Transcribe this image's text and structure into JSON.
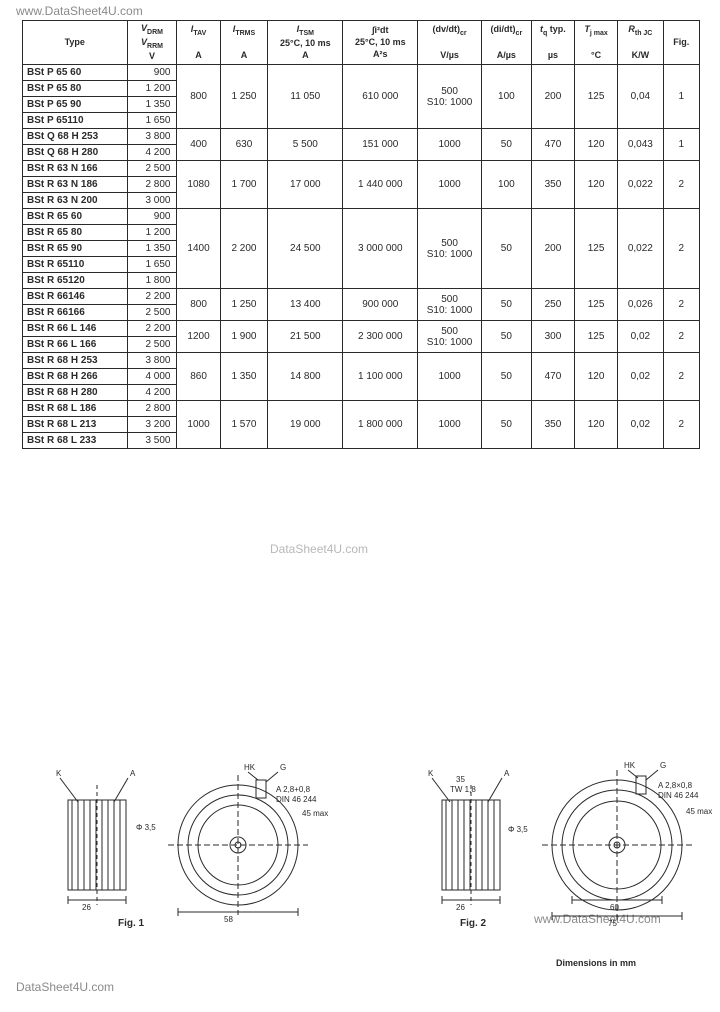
{
  "watermarks": {
    "top": "www.DataSheet4U.com",
    "mid": "DataSheet4U.com",
    "bot_right": "www.DataSheet4U.com",
    "bot_left": "DataSheet4U.com"
  },
  "headers": {
    "type": "Type",
    "vdrm1": "V",
    "vdrm_line1": "V_DRM",
    "vdrm_line2": "V_RRM",
    "itav": "I_TAV",
    "itav_u": "A",
    "itrms": "I_TRMS",
    "itrms_u": "A",
    "itsm": "I_TSM",
    "itsm_cond": "25°C, 10 ms",
    "itsm_u": "A",
    "i2t": "∫i²dt",
    "i2t_cond": "25°C, 10 ms",
    "i2t_u": "A²s",
    "dvdt": "(dv/dt)_cr",
    "dvdt_u": "V/µs",
    "didt": "(di/dt)_cr",
    "didt_u": "A/µs",
    "tq": "t_q typ.",
    "tq_u": "µs",
    "tj": "T_j max",
    "tj_u": "°C",
    "rth": "R_th JC",
    "rth_u": "K/W",
    "fig": "Fig."
  },
  "groups": [
    {
      "rows": [
        [
          "BSt P 65 60",
          "900"
        ],
        [
          "BSt P 65 80",
          "1 200"
        ],
        [
          "BSt P 65 90",
          "1 350"
        ],
        [
          "BSt P 65110",
          "1 650"
        ]
      ],
      "itav": "800",
      "itrms": "1 250",
      "itsm": "11 050",
      "i2t": "610 000",
      "dvdt": "500\nS10: 1000",
      "didt": "100",
      "tq": "200",
      "tj": "125",
      "rth": "0,04",
      "fig": "1"
    },
    {
      "rows": [
        [
          "BSt Q 68 H 253",
          "3 800"
        ],
        [
          "BSt Q 68 H 280",
          "4 200"
        ]
      ],
      "itav": "400",
      "itrms": "630",
      "itsm": "5 500",
      "i2t": "151 000",
      "dvdt": "1000",
      "didt": "50",
      "tq": "470",
      "tj": "120",
      "rth": "0,043",
      "fig": "1"
    },
    {
      "rows": [
        [
          "BSt R 63 N 166",
          "2 500"
        ],
        [
          "BSt R 63 N 186",
          "2 800"
        ],
        [
          "BSt R 63 N 200",
          "3 000"
        ]
      ],
      "itav": "1080",
      "itrms": "1 700",
      "itsm": "17 000",
      "i2t": "1 440 000",
      "dvdt": "1000",
      "didt": "100",
      "tq": "350",
      "tj": "120",
      "rth": "0,022",
      "fig": "2"
    },
    {
      "rows": [
        [
          "BSt R 65 60",
          "900"
        ],
        [
          "BSt R 65 80",
          "1 200"
        ],
        [
          "BSt R 65 90",
          "1 350"
        ],
        [
          "BSt R 65110",
          "1 650"
        ],
        [
          "BSt R 65120",
          "1 800"
        ]
      ],
      "itav": "1400",
      "itrms": "2 200",
      "itsm": "24 500",
      "i2t": "3 000 000",
      "dvdt": "500\nS10: 1000",
      "didt": "50",
      "tq": "200",
      "tj": "125",
      "rth": "0,022",
      "fig": "2"
    },
    {
      "rows": [
        [
          "BSt R 66146",
          "2 200"
        ],
        [
          "BSt R 66166",
          "2 500"
        ]
      ],
      "itav": "800",
      "itrms": "1 250",
      "itsm": "13 400",
      "i2t": "900 000",
      "dvdt": "500\nS10: 1000",
      "didt": "50",
      "tq": "250",
      "tj": "125",
      "rth": "0,026",
      "fig": "2"
    },
    {
      "rows": [
        [
          "BSt R 66 L 146",
          "2 200"
        ],
        [
          "BSt R 66 L 166",
          "2 500"
        ]
      ],
      "itav": "1200",
      "itrms": "1 900",
      "itsm": "21 500",
      "i2t": "2 300 000",
      "dvdt": "500\nS10: 1000",
      "didt": "50",
      "tq": "300",
      "tj": "125",
      "rth": "0,02",
      "fig": "2"
    },
    {
      "rows": [
        [
          "BSt R 68 H 253",
          "3 800"
        ],
        [
          "BSt R 68 H 266",
          "4 000"
        ],
        [
          "BSt R 68 H 280",
          "4 200"
        ]
      ],
      "itav": "860",
      "itrms": "1 350",
      "itsm": "14 800",
      "i2t": "1 100 000",
      "dvdt": "1000",
      "didt": "50",
      "tq": "470",
      "tj": "120",
      "rth": "0,02",
      "fig": "2"
    },
    {
      "rows": [
        [
          "BSt R 68 L 186",
          "2 800"
        ],
        [
          "BSt R 68 L 213",
          "3 200"
        ],
        [
          "BSt R 68 L 233",
          "3 500"
        ]
      ],
      "itav": "1000",
      "itrms": "1 570",
      "itsm": "19 000",
      "i2t": "1 800 000",
      "dvdt": "1000",
      "didt": "50",
      "tq": "350",
      "tj": "120",
      "rth": "0,02",
      "fig": "2"
    }
  ],
  "fig1_label": "Fig. 1",
  "fig2_label": "Fig. 2",
  "dim_note": "Dimensions in mm",
  "col_widths": [
    "92",
    "44",
    "38",
    "42",
    "66",
    "66",
    "56",
    "44",
    "38",
    "38",
    "40",
    "32"
  ],
  "colors": {
    "border": "#2a2a2a",
    "text": "#2a2a2a",
    "wm": "#8a8a8a",
    "bg": "#ffffff"
  }
}
